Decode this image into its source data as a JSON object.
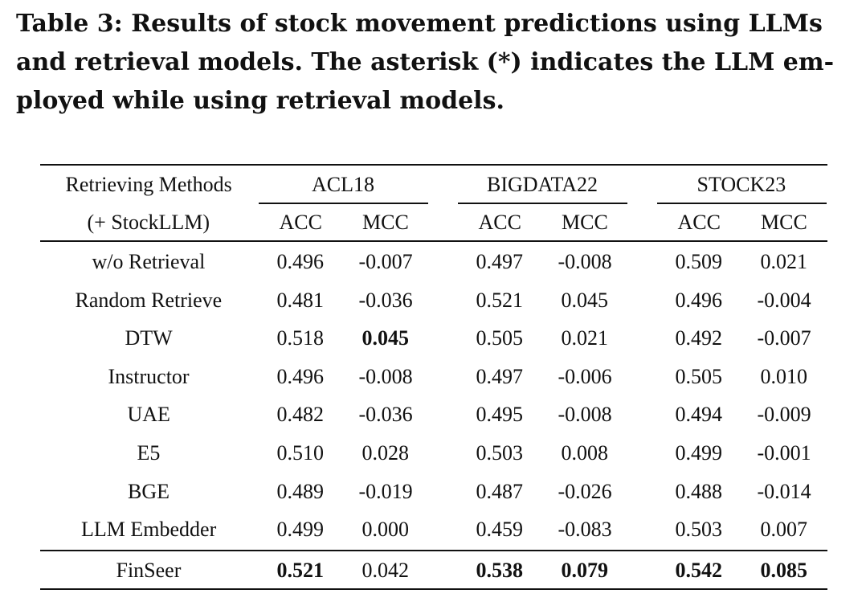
{
  "caption": {
    "line1": "Table 3: Results of stock movement predictions using LLMs",
    "line2": "and retrieval models. The asterisk (*) indicates the LLM em-",
    "line3": "ployed while using retrieval models."
  },
  "table": {
    "header": {
      "method_line1": "Retrieving Methods",
      "method_line2": "(+ StockLLM)",
      "groups": [
        "ACL18",
        "BIGDATA22",
        "STOCK23"
      ],
      "metrics": [
        "ACC",
        "MCC",
        "ACC",
        "MCC",
        "ACC",
        "MCC"
      ]
    },
    "rows": [
      {
        "method": "w/o Retrieval",
        "values": [
          "0.496",
          "-0.007",
          "0.497",
          "-0.008",
          "0.509",
          "0.021"
        ],
        "bold": [
          false,
          false,
          false,
          false,
          false,
          false
        ]
      },
      {
        "method": "Random Retrieve",
        "values": [
          "0.481",
          "-0.036",
          "0.521",
          "0.045",
          "0.496",
          "-0.004"
        ],
        "bold": [
          false,
          false,
          false,
          false,
          false,
          false
        ]
      },
      {
        "method": "DTW",
        "values": [
          "0.518",
          "0.045",
          "0.505",
          "0.021",
          "0.492",
          "-0.007"
        ],
        "bold": [
          false,
          true,
          false,
          false,
          false,
          false
        ]
      },
      {
        "method": "Instructor",
        "values": [
          "0.496",
          "-0.008",
          "0.497",
          "-0.006",
          "0.505",
          "0.010"
        ],
        "bold": [
          false,
          false,
          false,
          false,
          false,
          false
        ]
      },
      {
        "method": "UAE",
        "values": [
          "0.482",
          "-0.036",
          "0.495",
          "-0.008",
          "0.494",
          "-0.009"
        ],
        "bold": [
          false,
          false,
          false,
          false,
          false,
          false
        ]
      },
      {
        "method": "E5",
        "values": [
          "0.510",
          "0.028",
          "0.503",
          "0.008",
          "0.499",
          "-0.001"
        ],
        "bold": [
          false,
          false,
          false,
          false,
          false,
          false
        ]
      },
      {
        "method": "BGE",
        "values": [
          "0.489",
          "-0.019",
          "0.487",
          "-0.026",
          "0.488",
          "-0.014"
        ],
        "bold": [
          false,
          false,
          false,
          false,
          false,
          false
        ]
      },
      {
        "method": "LLM Embedder",
        "values": [
          "0.499",
          "0.000",
          "0.459",
          "-0.083",
          "0.503",
          "0.007"
        ],
        "bold": [
          false,
          false,
          false,
          false,
          false,
          false
        ]
      },
      {
        "method": "FinSeer",
        "values": [
          "0.521",
          "0.042",
          "0.538",
          "0.079",
          "0.542",
          "0.085"
        ],
        "bold": [
          true,
          false,
          true,
          true,
          true,
          true
        ]
      }
    ]
  }
}
